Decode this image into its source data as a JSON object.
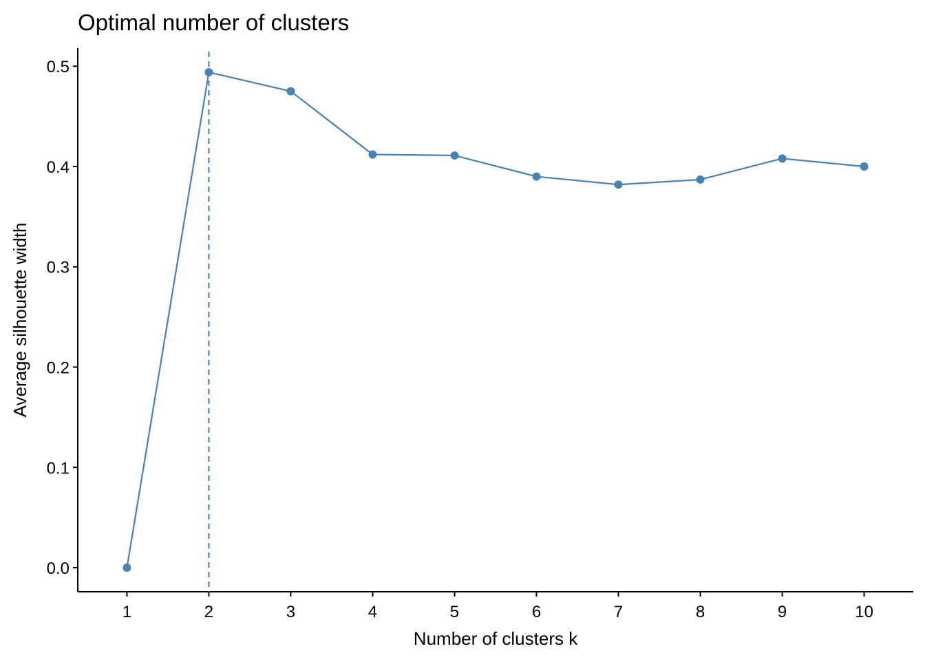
{
  "chart_data": {
    "type": "line",
    "title": "Optimal number of clusters",
    "x_label": "Number of clusters k",
    "y_label": "Average silhouette width",
    "x": [
      1,
      2,
      3,
      4,
      5,
      6,
      7,
      8,
      9,
      10
    ],
    "series": [
      {
        "name": null,
        "color": "#4682b4",
        "values": [
          0,
          0.494,
          0.475,
          0.412,
          0.411,
          0.39,
          0.382,
          0.387,
          0.408,
          0.4
        ]
      }
    ],
    "vline": 2,
    "xlim": [
      0.4,
      10.6
    ],
    "xticks": [
      1,
      2,
      3,
      4,
      5,
      6,
      7,
      8,
      9,
      10
    ],
    "ylim": [
      -0.024,
      0.518
    ],
    "yticks": [
      {
        "value": 0,
        "label": "0.0"
      },
      0.1,
      0.2,
      0.3,
      0.4,
      0.5
    ],
    "grid": false
  }
}
